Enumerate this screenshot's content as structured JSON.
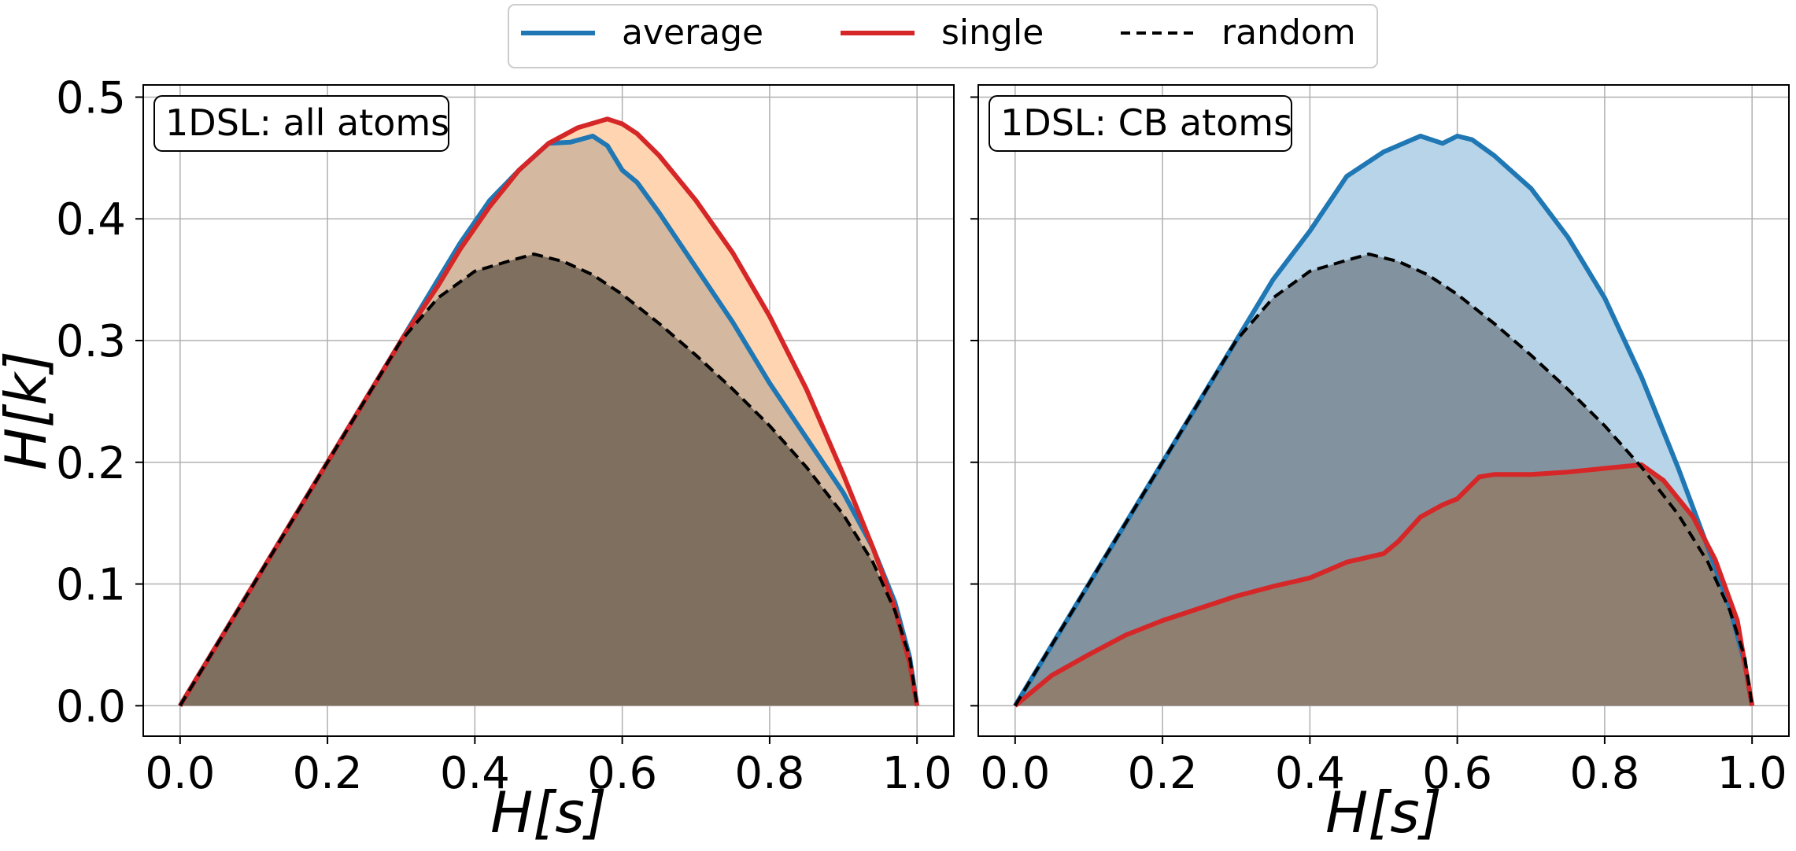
{
  "legend": {
    "position": "top-center",
    "items": [
      {
        "label": "average",
        "color": "#1f77b4",
        "style": "solid"
      },
      {
        "label": "single",
        "color": "#d62728",
        "style": "solid"
      },
      {
        "label": "random",
        "color": "#000000",
        "style": "dashed"
      }
    ]
  },
  "chart_data": [
    {
      "type": "area",
      "annotation": "1DSL: all atoms",
      "xlabel": "H[s]",
      "ylabel": "H[k]",
      "xlim": [
        -0.05,
        1.05
      ],
      "ylim": [
        -0.025,
        0.51
      ],
      "xticks": [
        "0.0",
        "0.2",
        "0.4",
        "0.6",
        "0.8",
        "1.0"
      ],
      "yticks": [
        "0.0",
        "0.1",
        "0.2",
        "0.3",
        "0.4",
        "0.5"
      ],
      "grid": true,
      "series": [
        {
          "name": "random",
          "color": "#000000",
          "fill": "#7f6f5f",
          "x": [
            0,
            0.05,
            0.1,
            0.15,
            0.2,
            0.25,
            0.3,
            0.35,
            0.4,
            0.45,
            0.48,
            0.52,
            0.56,
            0.6,
            0.65,
            0.7,
            0.75,
            0.8,
            0.85,
            0.9,
            0.94,
            0.97,
            0.99,
            1.0
          ],
          "y": [
            0,
            0.05,
            0.1,
            0.15,
            0.2,
            0.25,
            0.3,
            0.335,
            0.357,
            0.366,
            0.371,
            0.365,
            0.354,
            0.338,
            0.314,
            0.288,
            0.26,
            0.23,
            0.196,
            0.157,
            0.118,
            0.078,
            0.04,
            0
          ]
        },
        {
          "name": "average",
          "color": "#1f77b4",
          "fill": "#d4b9a0",
          "x": [
            0,
            0.05,
            0.1,
            0.15,
            0.2,
            0.25,
            0.3,
            0.35,
            0.38,
            0.42,
            0.46,
            0.5,
            0.53,
            0.56,
            0.58,
            0.6,
            0.62,
            0.65,
            0.7,
            0.75,
            0.8,
            0.85,
            0.9,
            0.94,
            0.97,
            0.99,
            1.0
          ],
          "y": [
            0,
            0.05,
            0.1,
            0.15,
            0.2,
            0.25,
            0.3,
            0.35,
            0.38,
            0.415,
            0.44,
            0.462,
            0.463,
            0.468,
            0.46,
            0.44,
            0.43,
            0.405,
            0.36,
            0.315,
            0.265,
            0.22,
            0.175,
            0.13,
            0.085,
            0.04,
            0
          ]
        },
        {
          "name": "single",
          "color": "#d62728",
          "fill": "#ffd4b0",
          "x": [
            0,
            0.05,
            0.1,
            0.15,
            0.2,
            0.25,
            0.3,
            0.35,
            0.38,
            0.42,
            0.46,
            0.5,
            0.54,
            0.58,
            0.6,
            0.62,
            0.65,
            0.7,
            0.75,
            0.8,
            0.85,
            0.9,
            0.94,
            0.97,
            0.99,
            1.0
          ],
          "y": [
            0,
            0.05,
            0.1,
            0.15,
            0.2,
            0.25,
            0.3,
            0.345,
            0.375,
            0.41,
            0.44,
            0.462,
            0.475,
            0.482,
            0.478,
            0.47,
            0.452,
            0.415,
            0.372,
            0.32,
            0.26,
            0.19,
            0.13,
            0.08,
            0.035,
            0
          ]
        }
      ]
    },
    {
      "type": "area",
      "annotation": "1DSL: CB atoms",
      "xlabel": "H[s]",
      "ylabel": "",
      "xlim": [
        -0.05,
        1.05
      ],
      "ylim": [
        -0.025,
        0.51
      ],
      "xticks": [
        "0.0",
        "0.2",
        "0.4",
        "0.6",
        "0.8",
        "1.0"
      ],
      "yticks": [],
      "grid": true,
      "series": [
        {
          "name": "random",
          "color": "#000000",
          "fill": "#82929f",
          "x": [
            0,
            0.05,
            0.1,
            0.15,
            0.2,
            0.25,
            0.3,
            0.35,
            0.4,
            0.45,
            0.48,
            0.52,
            0.56,
            0.6,
            0.65,
            0.7,
            0.75,
            0.8,
            0.85,
            0.9,
            0.94,
            0.97,
            0.99,
            1.0
          ],
          "y": [
            0,
            0.05,
            0.1,
            0.15,
            0.2,
            0.25,
            0.3,
            0.335,
            0.357,
            0.366,
            0.371,
            0.365,
            0.354,
            0.338,
            0.314,
            0.288,
            0.26,
            0.23,
            0.196,
            0.157,
            0.118,
            0.078,
            0.04,
            0
          ]
        },
        {
          "name": "average",
          "color": "#1f77b4",
          "fill": "#b8d4e8",
          "x": [
            0,
            0.05,
            0.1,
            0.15,
            0.2,
            0.25,
            0.3,
            0.35,
            0.4,
            0.45,
            0.5,
            0.55,
            0.58,
            0.6,
            0.62,
            0.65,
            0.7,
            0.75,
            0.8,
            0.85,
            0.9,
            0.94,
            0.97,
            0.99,
            1.0
          ],
          "y": [
            0,
            0.05,
            0.1,
            0.15,
            0.2,
            0.25,
            0.3,
            0.35,
            0.39,
            0.435,
            0.455,
            0.468,
            0.462,
            0.468,
            0.465,
            0.452,
            0.425,
            0.385,
            0.335,
            0.27,
            0.195,
            0.13,
            0.08,
            0.035,
            0
          ]
        },
        {
          "name": "single",
          "color": "#d62728",
          "fill": "#8f7f70",
          "x": [
            0,
            0.05,
            0.1,
            0.15,
            0.2,
            0.25,
            0.3,
            0.35,
            0.4,
            0.45,
            0.5,
            0.52,
            0.55,
            0.58,
            0.6,
            0.63,
            0.65,
            0.7,
            0.75,
            0.8,
            0.85,
            0.88,
            0.92,
            0.95,
            0.98,
            1.0
          ],
          "y": [
            0,
            0.025,
            0.042,
            0.058,
            0.07,
            0.08,
            0.09,
            0.098,
            0.105,
            0.118,
            0.125,
            0.135,
            0.155,
            0.165,
            0.17,
            0.188,
            0.19,
            0.19,
            0.192,
            0.195,
            0.198,
            0.185,
            0.155,
            0.12,
            0.07,
            0
          ]
        }
      ]
    }
  ]
}
